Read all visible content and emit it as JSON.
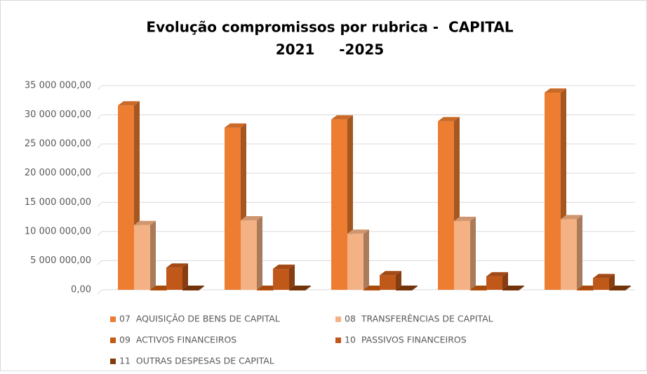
{
  "chart_data": {
    "type": "bar3d",
    "title": "Evolução compromissos por rubrica -  CAPITAL",
    "subtitle": "2021     -2025",
    "categories": [
      null,
      null,
      null,
      null,
      null
    ],
    "series": [
      {
        "name": "07  AQUISIÇÃO DE BENS DE CAPITAL",
        "color": "#ed7d31",
        "values": [
          31600000,
          27800000,
          29200000,
          28900000,
          33800000
        ]
      },
      {
        "name": "08  TRANSFERÊNCIAS DE CAPITAL",
        "color": "#f4b183",
        "values": [
          11100000,
          11900000,
          9600000,
          11800000,
          12100000
        ]
      },
      {
        "name": "09  ACTIVOS FINANCEIROS",
        "color": "#c55a11",
        "values": [
          0,
          0,
          0,
          0,
          0
        ]
      },
      {
        "name": "10  PASSIVOS FINANCEIROS",
        "color": "#c0581a",
        "values": [
          3800000,
          3600000,
          2500000,
          2300000,
          2000000
        ]
      },
      {
        "name": "11  OUTRAS DESPESAS DE CAPITAL",
        "color": "#843c0c",
        "values": [
          0,
          0,
          0,
          0,
          0
        ]
      }
    ],
    "ylim": [
      0,
      35000000
    ],
    "yticks": [
      {
        "value": 0,
        "label": "0,00"
      },
      {
        "value": 5000000,
        "label": "5 000 000,00"
      },
      {
        "value": 10000000,
        "label": "10 000 000,00"
      },
      {
        "value": 15000000,
        "label": "15 000 000,00"
      },
      {
        "value": 20000000,
        "label": "20 000 000,00"
      },
      {
        "value": 25000000,
        "label": "25 000 000,00"
      },
      {
        "value": 30000000,
        "label": "30 000 000,00"
      },
      {
        "value": 35000000,
        "label": "35 000 000,00"
      }
    ],
    "grid": true
  }
}
